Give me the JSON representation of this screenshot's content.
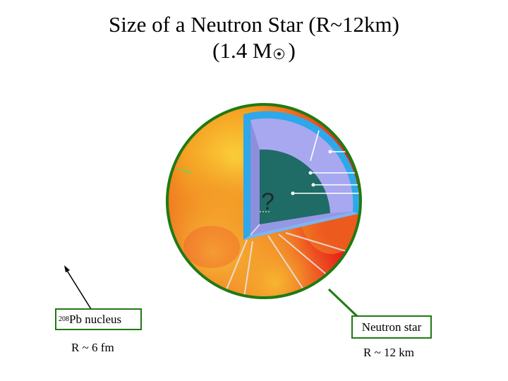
{
  "title": {
    "line1": "Size of a Neutron Star (R~12km)",
    "line2_prefix": "(1.4 M",
    "line2_suffix": ")"
  },
  "question_mark": "?",
  "pb_label": {
    "mass_number": "208",
    "text": "Pb nucleus",
    "radius": "R ~ 6 fm"
  },
  "ns_label": {
    "text": "Neutron star",
    "radius": "R ~ 12 km"
  },
  "colors": {
    "frame_green": "#1f7a12",
    "star_red": "#e8201a",
    "star_orange": "#f5901f",
    "star_yellow": "#fbd23a",
    "crust_blue": "#2ea8e8",
    "mantle_lavender": "#a7a8f0",
    "core_teal": "#1f6b66"
  }
}
